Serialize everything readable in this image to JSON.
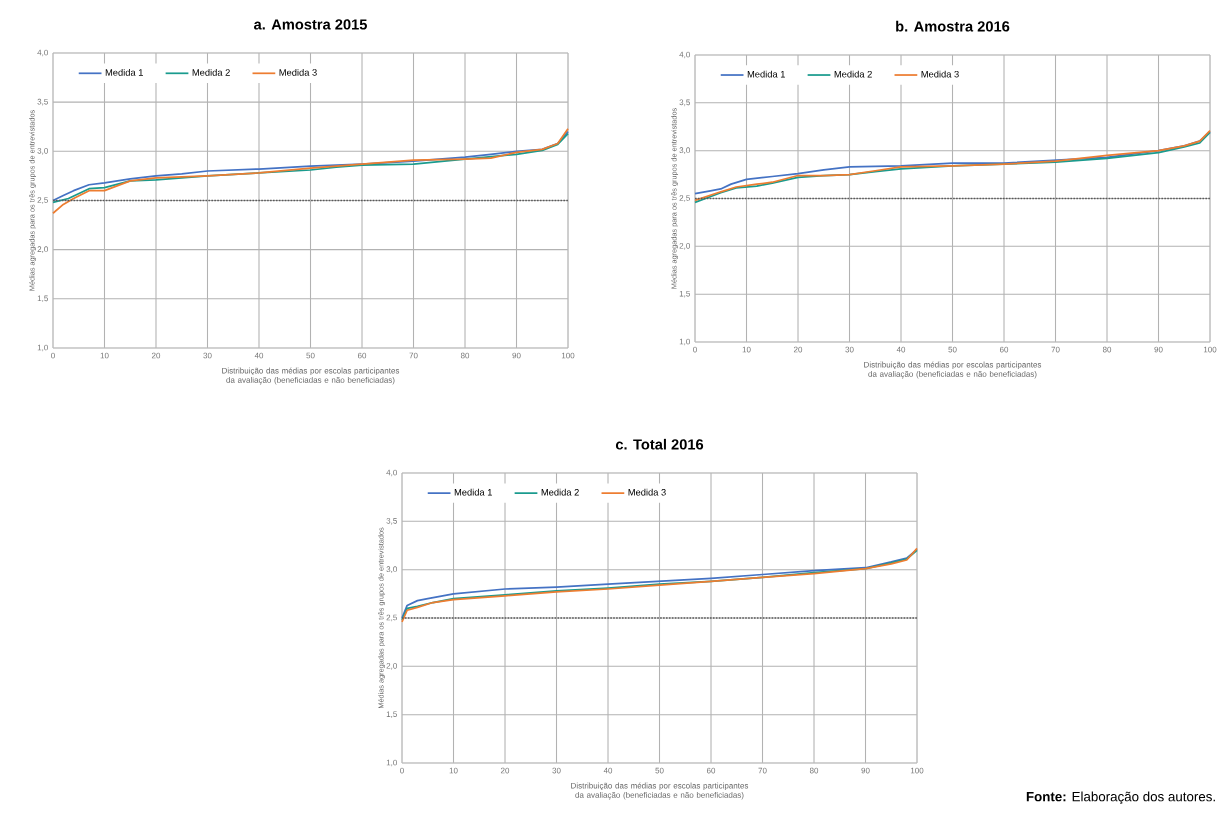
{
  "chart_data": [
    {
      "type": "line",
      "title": "**a.  Amostra 2015**",
      "xlabel": "Distribuição das médias por escolas participantes da avaliação (beneficiadas e não beneficiadas)",
      "ylabel": "Médias agregadas para os três grupos de entrevistados",
      "xlim": [
        0,
        100
      ],
      "xticks": [
        0,
        10,
        20,
        30,
        40,
        50,
        60,
        70,
        80,
        90,
        100
      ],
      "ylim": [
        1,
        4
      ],
      "yticks": [
        {
          "value": 1,
          "label": "1,0"
        },
        {
          "value": 1.5,
          "label": "1,5"
        },
        {
          "value": 2,
          "label": "2,0"
        },
        {
          "value": 2.5,
          "label": "2,5"
        },
        {
          "value": 3,
          "label": "3,0"
        },
        {
          "value": 3.5,
          "label": "3,5"
        },
        {
          "value": 4,
          "label": "4,0"
        }
      ],
      "grid": true,
      "legend": "top left",
      "ref_lines": [
        {
          "axis": "y",
          "value": 2.5,
          "color": "#595959",
          "line_style": "dotted"
        }
      ],
      "series": [
        {
          "name": "Medida 1",
          "color": "#4472c4",
          "x": [
            0,
            2,
            4,
            7,
            10,
            15,
            20,
            25,
            30,
            40,
            50,
            60,
            70,
            80,
            85,
            90,
            95,
            98,
            100
          ],
          "values": [
            2.5,
            2.55,
            2.6,
            2.66,
            2.68,
            2.72,
            2.75,
            2.77,
            2.8,
            2.82,
            2.85,
            2.87,
            2.9,
            2.94,
            2.97,
            3.0,
            3.02,
            3.08,
            3.2
          ]
        },
        {
          "name": "Medida 2",
          "color": "#1a9b8e",
          "x": [
            0,
            3,
            7,
            10,
            15,
            20,
            25,
            30,
            40,
            50,
            55,
            60,
            70,
            80,
            90,
            95,
            98,
            100
          ],
          "values": [
            2.48,
            2.52,
            2.62,
            2.63,
            2.7,
            2.71,
            2.73,
            2.75,
            2.78,
            2.81,
            2.84,
            2.86,
            2.87,
            2.92,
            2.97,
            3.01,
            3.07,
            3.18
          ]
        },
        {
          "name": "Medida 3",
          "color": "#ed7d31",
          "x": [
            0,
            2,
            4,
            7,
            10,
            15,
            20,
            25,
            30,
            40,
            50,
            60,
            70,
            80,
            85,
            90,
            95,
            98,
            100
          ],
          "values": [
            2.37,
            2.46,
            2.52,
            2.6,
            2.6,
            2.7,
            2.73,
            2.74,
            2.75,
            2.78,
            2.83,
            2.87,
            2.91,
            2.92,
            2.93,
            2.99,
            3.02,
            3.08,
            3.23
          ]
        }
      ]
    },
    {
      "type": "line",
      "title": "**b.  Amostra 2016**",
      "xlabel": "Distribuição das médias por escolas participantes da avaliação (beneficiadas e não beneficiadas)",
      "ylabel": "Médias agregadas para os três grupos de entrevistados",
      "xlim": [
        0,
        100
      ],
      "xticks": [
        0,
        10,
        20,
        30,
        40,
        50,
        60,
        70,
        80,
        90,
        100
      ],
      "ylim": [
        1,
        4
      ],
      "yticks": [
        {
          "value": 1,
          "label": "1,0"
        },
        {
          "value": 1.5,
          "label": "1,5"
        },
        {
          "value": 2,
          "label": "2,0"
        },
        {
          "value": 2.5,
          "label": "2,5"
        },
        {
          "value": 3,
          "label": "3,0"
        },
        {
          "value": 3.5,
          "label": "3,5"
        },
        {
          "value": 4,
          "label": "4,0"
        }
      ],
      "grid": true,
      "legend": "top left",
      "ref_lines": [
        {
          "axis": "y",
          "value": 2.5,
          "color": "#595959",
          "line_style": "dotted"
        }
      ],
      "series": [
        {
          "name": "Medida 1",
          "color": "#4472c4",
          "x": [
            0,
            3,
            5,
            7,
            10,
            15,
            20,
            25,
            30,
            40,
            50,
            60,
            70,
            80,
            90,
            95,
            98,
            100
          ],
          "values": [
            2.55,
            2.58,
            2.6,
            2.65,
            2.7,
            2.73,
            2.76,
            2.8,
            2.83,
            2.84,
            2.87,
            2.87,
            2.9,
            2.93,
            3.0,
            3.05,
            3.1,
            3.2
          ]
        },
        {
          "name": "Medida 2",
          "color": "#1a9b8e",
          "x": [
            0,
            5,
            8,
            12,
            15,
            20,
            25,
            30,
            35,
            40,
            50,
            60,
            70,
            80,
            90,
            95,
            98,
            100
          ],
          "values": [
            2.46,
            2.56,
            2.61,
            2.63,
            2.66,
            2.72,
            2.74,
            2.75,
            2.78,
            2.81,
            2.84,
            2.86,
            2.88,
            2.92,
            2.98,
            3.04,
            3.08,
            3.19
          ]
        },
        {
          "name": "Medida 3",
          "color": "#ed7d31",
          "x": [
            0,
            5,
            8,
            12,
            15,
            20,
            25,
            30,
            35,
            40,
            50,
            60,
            70,
            80,
            90,
            95,
            98,
            100
          ],
          "values": [
            2.48,
            2.57,
            2.62,
            2.65,
            2.67,
            2.74,
            2.74,
            2.75,
            2.79,
            2.83,
            2.84,
            2.86,
            2.89,
            2.95,
            3.0,
            3.05,
            3.1,
            3.21
          ]
        }
      ]
    },
    {
      "type": "line",
      "title": "**c.  Total 2016**",
      "xlabel": "Distribuição das médias por escolas participantes da avaliação (beneficiadas e não beneficiadas)",
      "ylabel": "Médias agregadas para os três grupos de entrevistados",
      "xlim": [
        0,
        100
      ],
      "xticks": [
        0,
        10,
        20,
        30,
        40,
        50,
        60,
        70,
        80,
        90,
        100
      ],
      "ylim": [
        1,
        4
      ],
      "yticks": [
        {
          "value": 1,
          "label": "1,0"
        },
        {
          "value": 1.5,
          "label": "1,5"
        },
        {
          "value": 2,
          "label": "2,0"
        },
        {
          "value": 2.5,
          "label": "2,5"
        },
        {
          "value": 3,
          "label": "3,0"
        },
        {
          "value": 3.5,
          "label": "3,5"
        },
        {
          "value": 4,
          "label": "4,0"
        }
      ],
      "grid": true,
      "legend": "top left",
      "ref_lines": [
        {
          "axis": "y",
          "value": 2.5,
          "color": "#595959",
          "line_style": "dotted"
        }
      ],
      "annotations": [
        "**Fonte:** Elaboração dos autores."
      ],
      "series": [
        {
          "name": "Medida 1",
          "color": "#4472c4",
          "x": [
            0,
            1,
            3,
            5,
            10,
            20,
            30,
            40,
            50,
            60,
            70,
            80,
            90,
            95,
            98,
            100
          ],
          "values": [
            2.5,
            2.63,
            2.68,
            2.7,
            2.75,
            2.8,
            2.82,
            2.85,
            2.88,
            2.91,
            2.95,
            2.99,
            3.02,
            3.08,
            3.12,
            3.21
          ]
        },
        {
          "name": "Medida 2",
          "color": "#1a9b8e",
          "x": [
            0,
            1,
            3,
            6,
            10,
            20,
            30,
            40,
            50,
            60,
            70,
            80,
            90,
            95,
            98,
            100
          ],
          "values": [
            2.48,
            2.6,
            2.62,
            2.66,
            2.7,
            2.74,
            2.78,
            2.81,
            2.85,
            2.88,
            2.92,
            2.97,
            3.01,
            3.07,
            3.11,
            3.2
          ]
        },
        {
          "name": "Medida 3",
          "color": "#ed7d31",
          "x": [
            0,
            1,
            3,
            6,
            10,
            20,
            30,
            40,
            50,
            60,
            70,
            80,
            90,
            95,
            98,
            100
          ],
          "values": [
            2.46,
            2.58,
            2.61,
            2.66,
            2.69,
            2.73,
            2.77,
            2.8,
            2.84,
            2.88,
            2.92,
            2.96,
            3.01,
            3.06,
            3.1,
            3.22
          ]
        }
      ]
    }
  ]
}
